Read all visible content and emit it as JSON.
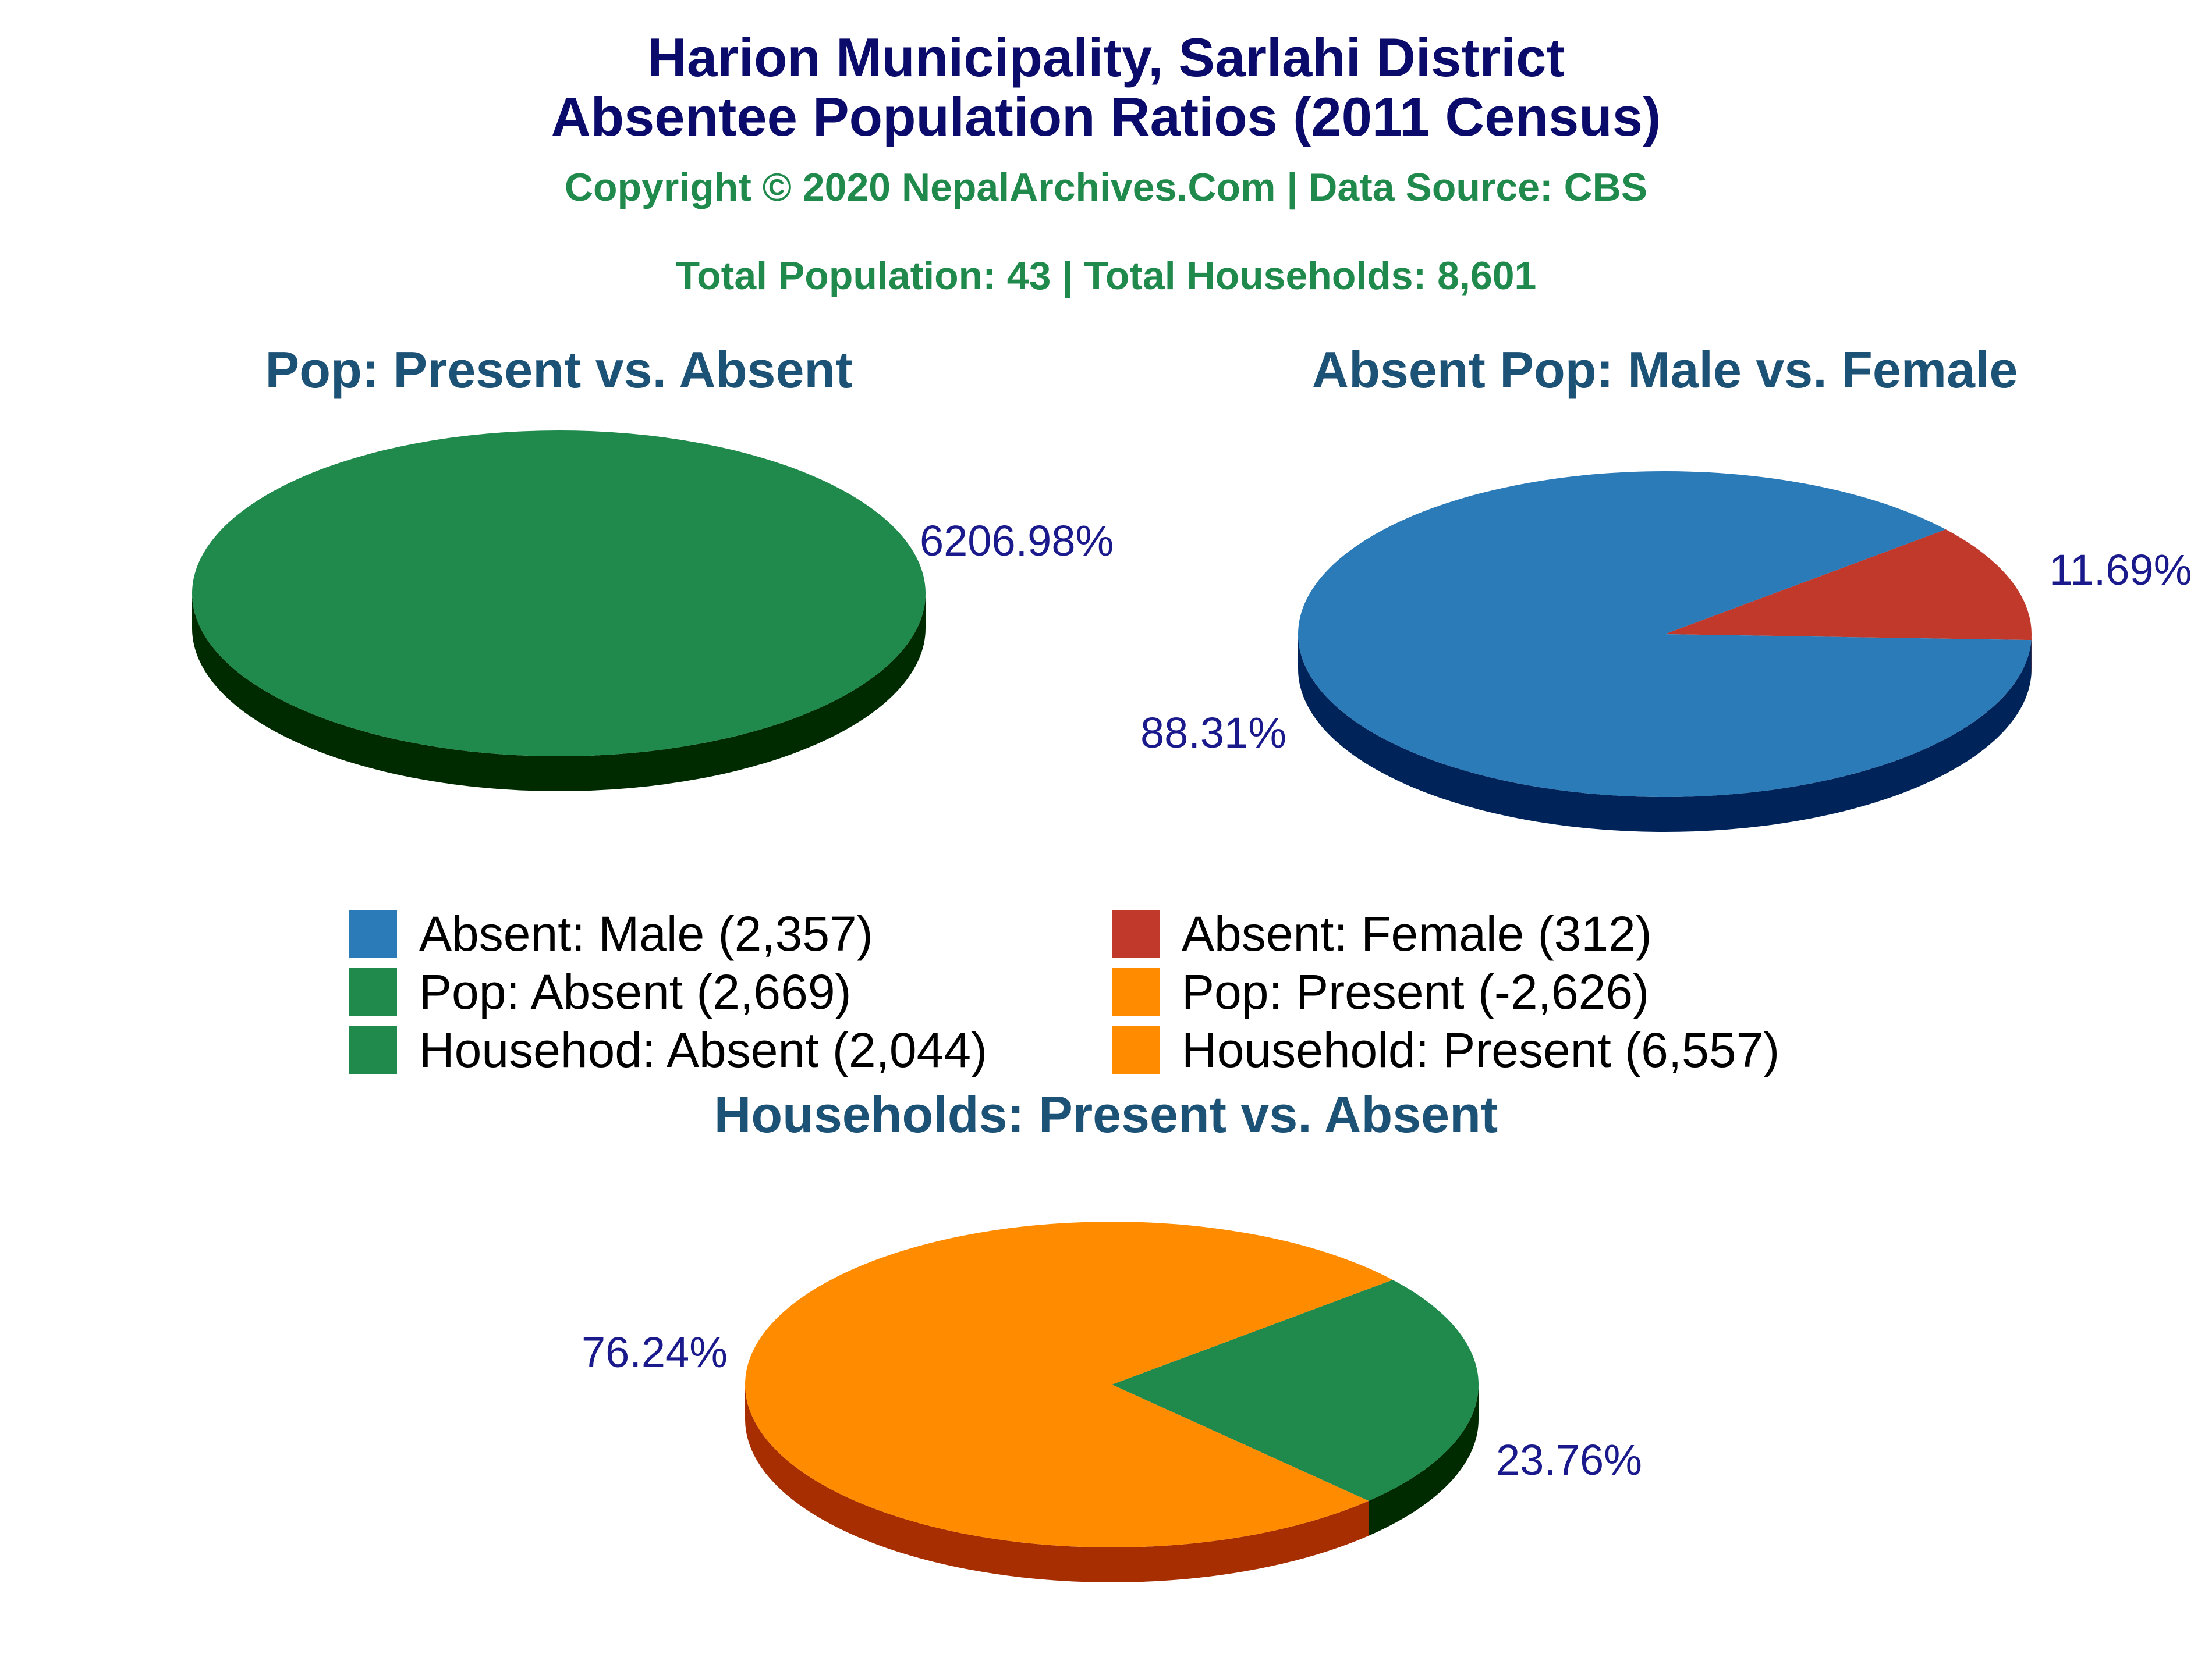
{
  "header": {
    "title_line1": "Harion Municipality, Sarlahi District",
    "title_line2": "Absentee Population Ratios (2011 Census)",
    "copyright": "Copyright © 2020 NepalArchives.Com | Data Source: CBS",
    "totals": "Total Population: 43 | Total Households: 8,601"
  },
  "colors": {
    "blue": "#2b7bb9",
    "blue_side": "#00245a",
    "red": "#c0392b",
    "red_side": "#6e1a10",
    "green": "#1f8a4c",
    "green_side": "#002a00",
    "orange": "#ff8c00",
    "orange_side": "#a62e00",
    "pct_text": "#1a1a8c"
  },
  "legend": [
    {
      "label": "Absent: Male (2,357)",
      "color": "#2b7bb9"
    },
    {
      "label": "Absent: Female (312)",
      "color": "#c0392b"
    },
    {
      "label": "Pop: Absent (2,669)",
      "color": "#1f8a4c"
    },
    {
      "label": "Pop: Present (-2,626)",
      "color": "#ff8c00"
    },
    {
      "label": "Househod: Absent (2,044)",
      "color": "#1f8a4c"
    },
    {
      "label": "Household: Present (6,557)",
      "color": "#ff8c00"
    }
  ],
  "chart_data": [
    {
      "type": "pie",
      "title": "Pop: Present vs. Absent",
      "slices": [
        {
          "name": "Pop: Absent",
          "value": 2669,
          "percent_label": "6206.98%",
          "color": "#1f8a4c",
          "side": "#002a00"
        }
      ]
    },
    {
      "type": "pie",
      "title": "Absent Pop: Male vs. Female",
      "slices": [
        {
          "name": "Absent: Female",
          "value": 312,
          "percent_label": "11.69%",
          "color": "#c0392b",
          "side": "#6e1a10"
        },
        {
          "name": "Absent: Male",
          "value": 2357,
          "percent_label": "88.31%",
          "color": "#2b7bb9",
          "side": "#00245a"
        }
      ]
    },
    {
      "type": "pie",
      "title": "Households: Present vs. Absent",
      "slices": [
        {
          "name": "Househod: Absent",
          "value": 2044,
          "percent_label": "23.76%",
          "color": "#1f8a4c",
          "side": "#002a00"
        },
        {
          "name": "Household: Present",
          "value": 6557,
          "percent_label": "76.24%",
          "color": "#ff8c00",
          "side": "#a62e00"
        }
      ]
    }
  ]
}
